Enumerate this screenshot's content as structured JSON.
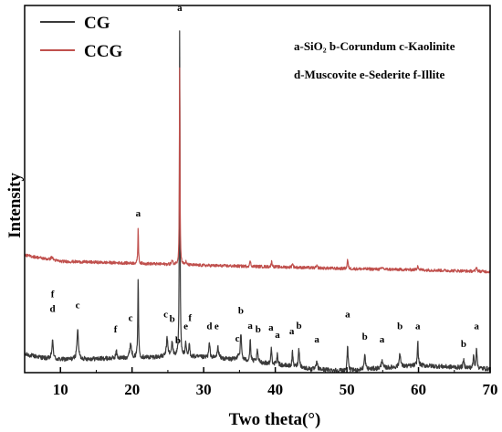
{
  "chart_data": {
    "type": "line",
    "xlabel": "Two theta(°)",
    "ylabel": "Intensity",
    "xlim": [
      5,
      70
    ],
    "xticks": [
      10,
      20,
      30,
      40,
      50,
      60,
      70
    ],
    "y_ticks_shown": false,
    "grid": false,
    "legend_position": "top-left",
    "phase_key": [
      "a-SiO₂ b-Corundum c-Kaolinite",
      "d-Muscovite e-Sederite f-Illite"
    ],
    "series": [
      {
        "name": "CG",
        "color": "#3a3a3a",
        "baseline": 0.04,
        "noise": 0.006,
        "drift": [
          [
            5,
            0.05
          ],
          [
            9,
            0.035
          ],
          [
            20,
            0.04
          ],
          [
            27,
            0.045
          ],
          [
            35,
            0.035
          ],
          [
            45,
            0.01
          ],
          [
            50,
            0.005
          ],
          [
            60,
            0.02
          ],
          [
            70,
            0.01
          ]
        ],
        "peaks": [
          [
            8.9,
            0.05,
            0.25
          ],
          [
            12.4,
            0.08,
            0.25
          ],
          [
            17.8,
            0.02,
            0.2
          ],
          [
            19.8,
            0.04,
            0.3
          ],
          [
            20.85,
            0.22,
            0.12
          ],
          [
            24.9,
            0.05,
            0.25
          ],
          [
            25.6,
            0.04,
            0.2
          ],
          [
            26.65,
            0.92,
            0.1
          ],
          [
            27.5,
            0.035,
            0.15
          ],
          [
            28.0,
            0.035,
            0.15
          ],
          [
            30.8,
            0.04,
            0.2
          ],
          [
            32.0,
            0.03,
            0.25
          ],
          [
            34.8,
            0.015,
            0.2
          ],
          [
            35.2,
            0.07,
            0.2
          ],
          [
            36.5,
            0.06,
            0.15
          ],
          [
            37.5,
            0.03,
            0.2
          ],
          [
            39.45,
            0.045,
            0.15
          ],
          [
            40.3,
            0.03,
            0.15
          ],
          [
            42.4,
            0.04,
            0.15
          ],
          [
            43.3,
            0.05,
            0.2
          ],
          [
            45.8,
            0.02,
            0.2
          ],
          [
            50.1,
            0.075,
            0.15
          ],
          [
            52.5,
            0.04,
            0.2
          ],
          [
            54.9,
            0.025,
            0.2
          ],
          [
            57.4,
            0.04,
            0.2
          ],
          [
            59.9,
            0.065,
            0.15
          ],
          [
            66.3,
            0.02,
            0.2
          ],
          [
            67.7,
            0.035,
            0.15
          ],
          [
            68.1,
            0.06,
            0.15
          ]
        ]
      },
      {
        "name": "CCG",
        "color": "#c0504d",
        "baseline": 0.31,
        "noise": 0.004,
        "drift": [
          [
            5,
            0.32
          ],
          [
            10,
            0.303
          ],
          [
            20,
            0.298
          ],
          [
            30,
            0.292
          ],
          [
            40,
            0.288
          ],
          [
            50,
            0.283
          ],
          [
            60,
            0.28
          ],
          [
            70,
            0.275
          ]
        ],
        "peaks": [
          [
            8.8,
            0.008,
            0.3
          ],
          [
            20.85,
            0.1,
            0.1
          ],
          [
            25.6,
            0.01,
            0.2
          ],
          [
            26.65,
            0.56,
            0.09
          ],
          [
            27.5,
            0.008,
            0.15
          ],
          [
            36.5,
            0.015,
            0.15
          ],
          [
            39.5,
            0.015,
            0.15
          ],
          [
            42.4,
            0.012,
            0.15
          ],
          [
            45.8,
            0.005,
            0.2
          ],
          [
            50.1,
            0.025,
            0.15
          ],
          [
            55.0,
            0.005,
            0.2
          ],
          [
            59.9,
            0.014,
            0.15
          ],
          [
            68.1,
            0.014,
            0.15
          ]
        ]
      }
    ],
    "annotations": [
      {
        "text": "a",
        "x": 26.65,
        "y": 0.985
      },
      {
        "text": "a",
        "x": 20.85,
        "y": 0.425
      },
      {
        "text": "f",
        "x": 8.9,
        "y": 0.205
      },
      {
        "text": "d",
        "x": 8.9,
        "y": 0.165
      },
      {
        "text": "c",
        "x": 12.4,
        "y": 0.175
      },
      {
        "text": "f",
        "x": 17.7,
        "y": 0.11
      },
      {
        "text": "c",
        "x": 19.8,
        "y": 0.14
      },
      {
        "text": "c",
        "x": 24.7,
        "y": 0.15
      },
      {
        "text": "b",
        "x": 25.6,
        "y": 0.138
      },
      {
        "text": "b",
        "x": 26.4,
        "y": 0.08
      },
      {
        "text": "e",
        "x": 27.5,
        "y": 0.118
      },
      {
        "text": "f",
        "x": 28.1,
        "y": 0.14
      },
      {
        "text": "d",
        "x": 30.8,
        "y": 0.118
      },
      {
        "text": "e",
        "x": 31.8,
        "y": 0.118
      },
      {
        "text": "c",
        "x": 34.7,
        "y": 0.085
      },
      {
        "text": "b",
        "x": 35.2,
        "y": 0.16
      },
      {
        "text": "a",
        "x": 36.5,
        "y": 0.12
      },
      {
        "text": "b",
        "x": 37.6,
        "y": 0.11
      },
      {
        "text": "a",
        "x": 39.4,
        "y": 0.115
      },
      {
        "text": "a",
        "x": 40.3,
        "y": 0.095
      },
      {
        "text": "a",
        "x": 42.3,
        "y": 0.105
      },
      {
        "text": "b",
        "x": 43.3,
        "y": 0.12
      },
      {
        "text": "a",
        "x": 45.8,
        "y": 0.082
      },
      {
        "text": "a",
        "x": 50.1,
        "y": 0.15
      },
      {
        "text": "b",
        "x": 52.5,
        "y": 0.09
      },
      {
        "text": "a",
        "x": 54.9,
        "y": 0.082
      },
      {
        "text": "b",
        "x": 57.4,
        "y": 0.118
      },
      {
        "text": "a",
        "x": 59.9,
        "y": 0.118
      },
      {
        "text": "b",
        "x": 66.3,
        "y": 0.07
      },
      {
        "text": "a",
        "x": 68.1,
        "y": 0.118
      }
    ]
  }
}
